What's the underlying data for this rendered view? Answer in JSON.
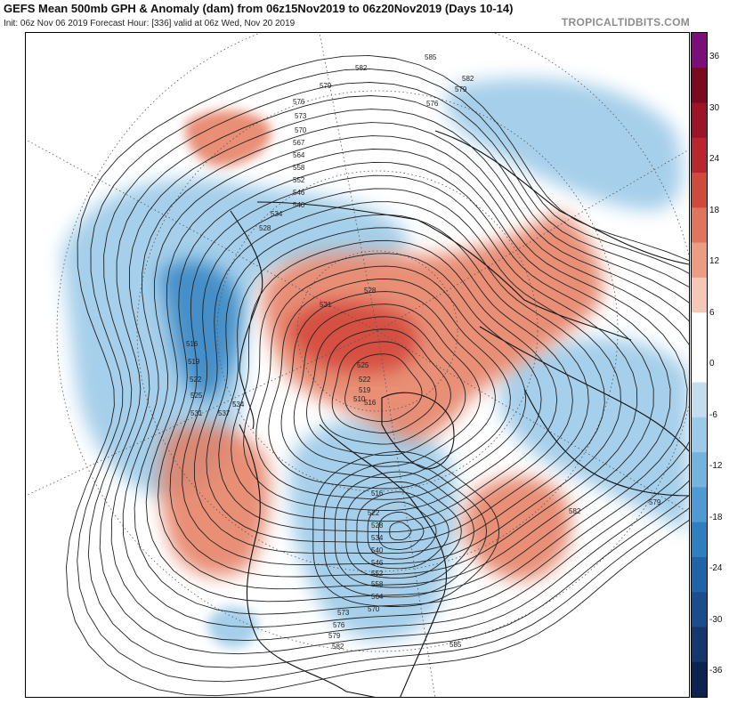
{
  "header": {
    "title": "GEFS Mean 500mb GPH & Anomaly (dam) from 06z15Nov2019 to 06z20Nov2019 (Days 10-14)",
    "subtitle": "Init: 06z Nov 06 2019   Forecast Hour: [336]   valid at 06z Wed, Nov 20 2019",
    "brand": "TROPICALTIDBITS.COM"
  },
  "colorbar": {
    "labels": [
      "36",
      "30",
      "24",
      "18",
      "12",
      "6",
      "0",
      "-6",
      "-12",
      "-18",
      "-24",
      "-30",
      "-36"
    ],
    "colors": [
      "#7a0f7a",
      "#7a0a1e",
      "#9c1427",
      "#b8262e",
      "#cf4a3d",
      "#e0745d",
      "#ec9c82",
      "#f5c7b4",
      "#ffffff",
      "#ffffff",
      "#c3dcee",
      "#9ccae8",
      "#74b3de",
      "#4f9ad2",
      "#2f7fc0",
      "#2163a8",
      "#1b4d8e",
      "#14386e",
      "#0c2350"
    ]
  },
  "map": {
    "contour_labels": [
      "585",
      "582",
      "579",
      "576",
      "573",
      "570",
      "567",
      "564",
      "558",
      "552",
      "546",
      "540",
      "534",
      "528",
      "516",
      "519",
      "522",
      "525",
      "531",
      "537",
      "534",
      "531",
      "528",
      "525",
      "522",
      "519",
      "516",
      "510",
      "516",
      "522",
      "528",
      "534",
      "540",
      "546",
      "552",
      "558",
      "564",
      "570",
      "573",
      "576",
      "579",
      "582",
      "585",
      "582",
      "579",
      "582",
      "579",
      "576"
    ],
    "colors": {
      "positive_anomaly": "#e47c5f",
      "strong_positive_anomaly": "#d34a3c",
      "negative_anomaly": "#9ccae8",
      "strong_negative_anomaly": "#2f7fc0"
    }
  }
}
